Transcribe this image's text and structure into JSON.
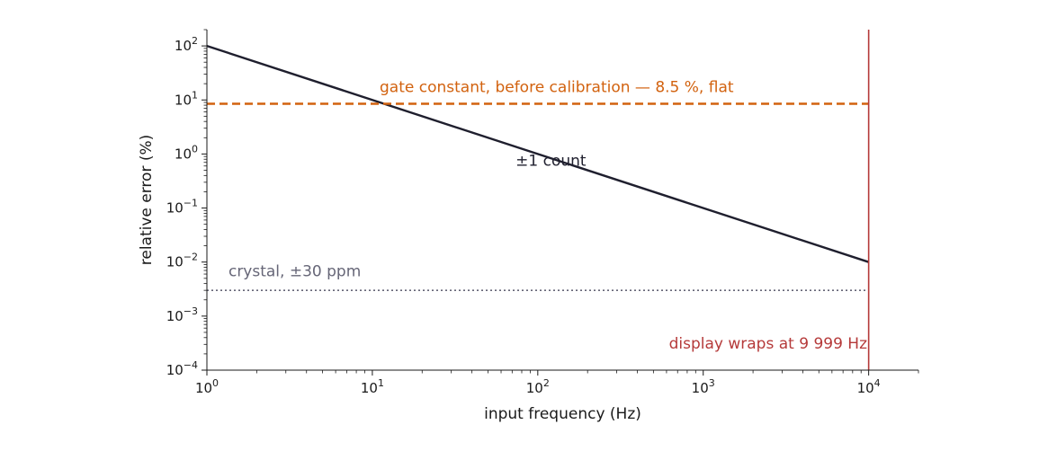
{
  "chart_data": {
    "type": "line",
    "x_scale": "log",
    "y_scale": "log",
    "xlim": [
      1,
      20000
    ],
    "ylim": [
      0.0001,
      200
    ],
    "grid": false,
    "x_ticks": [
      {
        "value": 1,
        "base": "10",
        "exp": "0"
      },
      {
        "value": 10,
        "base": "10",
        "exp": "1"
      },
      {
        "value": 100,
        "base": "10",
        "exp": "2"
      },
      {
        "value": 1000,
        "base": "10",
        "exp": "3"
      },
      {
        "value": 10000,
        "base": "10",
        "exp": "4"
      }
    ],
    "y_ticks": [
      {
        "value": 0.0001,
        "base": "10",
        "exp": "−4"
      },
      {
        "value": 0.001,
        "base": "10",
        "exp": "−3"
      },
      {
        "value": 0.01,
        "base": "10",
        "exp": "−2"
      },
      {
        "value": 0.1,
        "base": "10",
        "exp": "−1"
      },
      {
        "value": 1,
        "base": "10",
        "exp": "0"
      },
      {
        "value": 10,
        "base": "10",
        "exp": "1"
      },
      {
        "value": 100,
        "base": "10",
        "exp": "2"
      }
    ],
    "xlabel": "input frequency (Hz)",
    "ylabel": "relative error (%)",
    "series": [
      {
        "x": [
          1,
          10000
        ],
        "y": [
          100,
          0.01
        ],
        "color": "#1f1f2e",
        "style": "solid"
      },
      {
        "x": [
          1,
          10000
        ],
        "y": [
          8.5,
          8.5
        ],
        "color": "#d2620f",
        "style": "dashed"
      },
      {
        "x": [
          1,
          10000
        ],
        "y": [
          0.003,
          0.003
        ],
        "color": "#666677",
        "style": "dotted"
      }
    ],
    "vlines": [
      {
        "x": 10000,
        "color": "#b53a3a"
      }
    ],
    "annotations": [
      {
        "text": "gate constant, before calibration — 8.5 %, flat",
        "x": 130,
        "y": 14,
        "anchor": "middle",
        "color": "#d2620f"
      },
      {
        "text": "±1 count",
        "x": 120,
        "y": 0.6,
        "anchor": "middle",
        "color": "#1f1f2e"
      },
      {
        "text": "crystal, ±30 ppm",
        "x": 1.35,
        "y": 0.0055,
        "anchor": "start",
        "color": "#666677"
      },
      {
        "text": "display wraps at 9 999 Hz",
        "x": 9800,
        "y": 0.00025,
        "anchor": "end",
        "color": "#b53a3a"
      }
    ]
  }
}
